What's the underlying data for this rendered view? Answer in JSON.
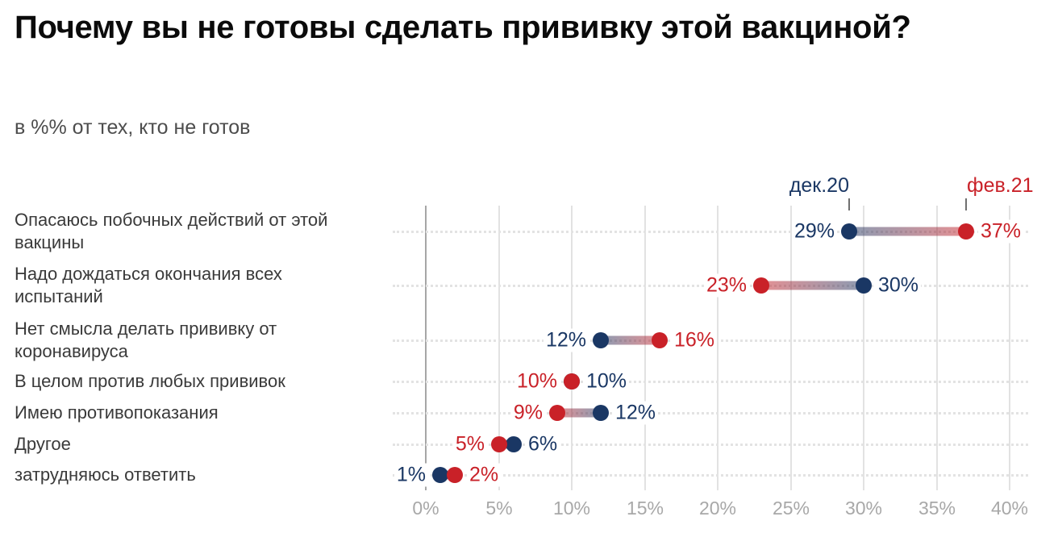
{
  "title": "Почему вы не готовы сделать прививку этой вакциной?",
  "subtitle": "в %% от тех, кто не готов",
  "chart_data": {
    "type": "scatter",
    "variant": "dumbbell",
    "title": "Почему вы не готовы сделать прививку этой вакциной?",
    "subtitle": "в %% от тех, кто не готов",
    "categories": [
      "Опасаюсь побочных действий от этой\nвакцины",
      "Надо дождаться окончания всех\nиспытаний",
      "Нет смысла делать прививку от\nкоронавируса",
      "В целом против любых прививок",
      "Имею противопоказания",
      "Другое",
      "затрудняюсь ответить"
    ],
    "series": [
      {
        "name": "дек.20",
        "color": "#1a3764",
        "values": [
          29,
          30,
          12,
          10,
          12,
          6,
          1
        ]
      },
      {
        "name": "фев.21",
        "color": "#c92128",
        "values": [
          37,
          23,
          16,
          10,
          9,
          5,
          2
        ]
      }
    ],
    "value_suffix": "%",
    "x_ticks": [
      0,
      5,
      10,
      15,
      20,
      25,
      30,
      35,
      40
    ],
    "xlim": [
      0,
      40
    ],
    "grid": "vertical-gridlines-every-5pct",
    "row_guides": "dotted-horizontal",
    "legend_position": "above-first-row-dots",
    "colors": {
      "title": "#0b0b0b",
      "subtitle": "#4d4d4d",
      "category_text": "#3a3a3a",
      "axis_text": "#a8a8a8",
      "gridline": "#e2e2e2",
      "zero_gridline": "#a6a6a6"
    }
  }
}
